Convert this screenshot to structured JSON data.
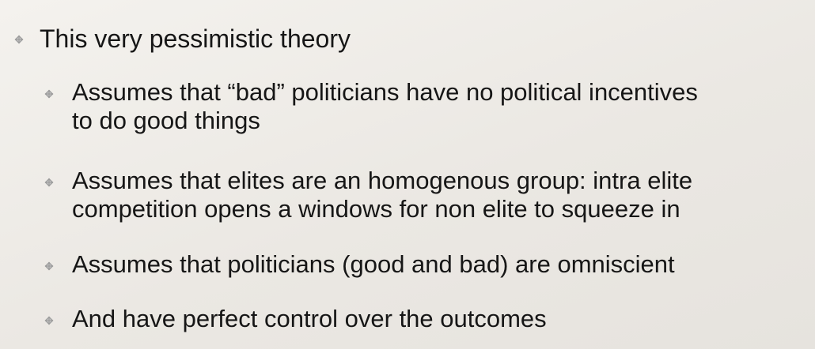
{
  "slide": {
    "main_bullet": "This very pessimistic theory",
    "sub_bullets": [
      {
        "line1": "Assumes that “bad” politicians have no political incentives",
        "line2": "to do good things"
      },
      {
        "line1": "Assumes that elites are an homogenous group: intra elite",
        "line2": "competition opens a windows for non elite to squeeze in"
      },
      {
        "line1": "Assumes that politicians (good and bad) are omniscient"
      },
      {
        "line1": "And have perfect control over the outcomes"
      }
    ]
  },
  "colors": {
    "text": "#161616",
    "bullet": "#a3a3a3"
  },
  "icons": {
    "bullet": "diamond-bullet-icon"
  }
}
